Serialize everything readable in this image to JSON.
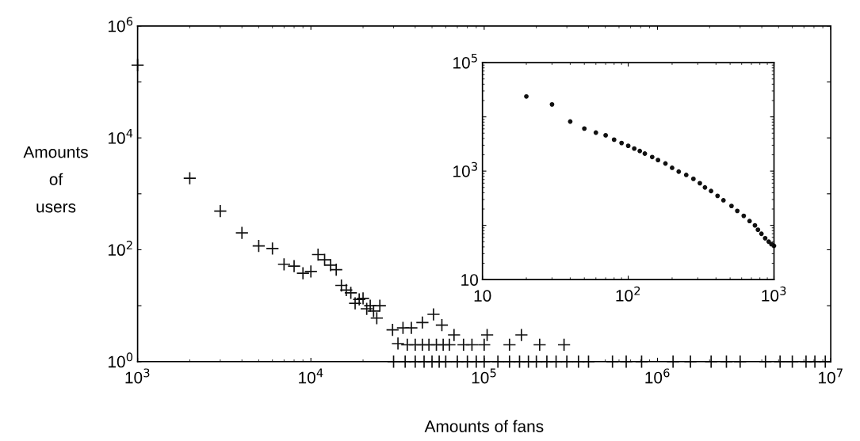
{
  "chart_data": [
    {
      "type": "scatter",
      "xlabel": "Amounts of fans",
      "ylabel": "Amounts\nof\nusers",
      "log": "xy",
      "grid": false,
      "marker": "cross",
      "xlim": [
        1000,
        10000000
      ],
      "ylim": [
        1,
        1000000
      ],
      "xticks": [
        {
          "value": 1000,
          "label": "10$^{3}$"
        },
        {
          "value": 10000,
          "label": "10$^{4}$"
        },
        {
          "value": 100000,
          "label": "10$^{5}$"
        },
        {
          "value": 1000000,
          "label": "10$^{6}$"
        },
        {
          "value": 10000000,
          "label": "10$^{7}$"
        }
      ],
      "yticks": [
        {
          "value": 1,
          "label": "10$^{0}$"
        },
        {
          "value": 10,
          "label": null
        },
        {
          "value": 100,
          "label": "10$^{2}$"
        },
        {
          "value": 1000,
          "label": null
        },
        {
          "value": 10000,
          "label": "10$^{4}$"
        },
        {
          "value": 100000,
          "label": null
        },
        {
          "value": 1000000,
          "label": "10$^{6}$"
        }
      ],
      "series": [
        {
          "color": "#111111",
          "x": [
            1000,
            2000,
            3000,
            4000,
            5000,
            6000,
            7000,
            8000,
            9000,
            10000,
            11000,
            12000,
            13000,
            14000,
            15000,
            16000,
            17000,
            18000,
            19000,
            20000,
            21000,
            22000,
            23000,
            24000,
            25000,
            29600,
            31800,
            34000,
            38000,
            44000,
            51000,
            57000,
            67000,
            36000,
            40000,
            44000,
            48000,
            53000,
            58000,
            63000,
            76000,
            85000,
            104000,
            100000,
            140000,
            164000,
            209000,
            289000,
            30000,
            35000,
            40000,
            45000,
            50000,
            55000,
            60000,
            70000,
            80000,
            90000,
            100000,
            120000,
            140000,
            160000,
            180000,
            200000,
            230000,
            260000,
            300000,
            350000,
            400000,
            550000,
            660000,
            810000,
            1230000,
            1550000,
            2040000,
            2500000,
            3000000,
            4200000,
            5100000,
            6000000,
            7200000,
            8100000,
            9300000
          ],
          "values": [
            200000,
            1900,
            490,
            200,
            117,
            105,
            55,
            51,
            38,
            41,
            82,
            66,
            53,
            44,
            23,
            19,
            17,
            11,
            13,
            13.5,
            8.8,
            10,
            8,
            6,
            10,
            3.7,
            2.1,
            4,
            4,
            5,
            7,
            4.5,
            3,
            2,
            2,
            2,
            2,
            2,
            2,
            2,
            2,
            2,
            3,
            2,
            2,
            3,
            2,
            2,
            1,
            1,
            1,
            1,
            1,
            1,
            1,
            1,
            1,
            1,
            1,
            1,
            1,
            1,
            1,
            1,
            1,
            1,
            1,
            1,
            1,
            1,
            1,
            1,
            1,
            1,
            1,
            1,
            1,
            1,
            1,
            1,
            1,
            1,
            1
          ]
        }
      ]
    },
    {
      "type": "scatter",
      "log": "xy",
      "grid": false,
      "marker": "circle",
      "xlim": [
        10,
        1000
      ],
      "ylim": [
        10,
        100000
      ],
      "xticks": [
        10,
        {
          "value": 100,
          "label": "10$^{2}$"
        },
        {
          "value": 1000,
          "label": "10$^{3}$"
        }
      ],
      "yticks": [
        10,
        {
          "value": 100,
          "label": null
        },
        {
          "value": 1000,
          "label": "10$^{3}$"
        },
        {
          "value": 10000,
          "label": null
        },
        {
          "value": 100000,
          "label": "10$^{5}$"
        }
      ],
      "series": [
        {
          "color": "#111111",
          "x": [
            20,
            30,
            40,
            50,
            60,
            70,
            80,
            90,
            100,
            110,
            120,
            130,
            146,
            160,
            180,
            200,
            222,
            250,
            280,
            310,
            336,
            370,
            410,
            450,
            511,
            560,
            620,
            680,
            740,
            776,
            820,
            870,
            920,
            960,
            1000
          ],
          "values": [
            23800,
            17000,
            8200,
            6080,
            5130,
            4570,
            3800,
            3300,
            2930,
            2600,
            2350,
            2100,
            1820,
            1600,
            1380,
            1150,
            980,
            850,
            720,
            600,
            500,
            430,
            350,
            290,
            228,
            185,
            150,
            120,
            100,
            83,
            70,
            58,
            50,
            45,
            42
          ]
        }
      ]
    }
  ]
}
